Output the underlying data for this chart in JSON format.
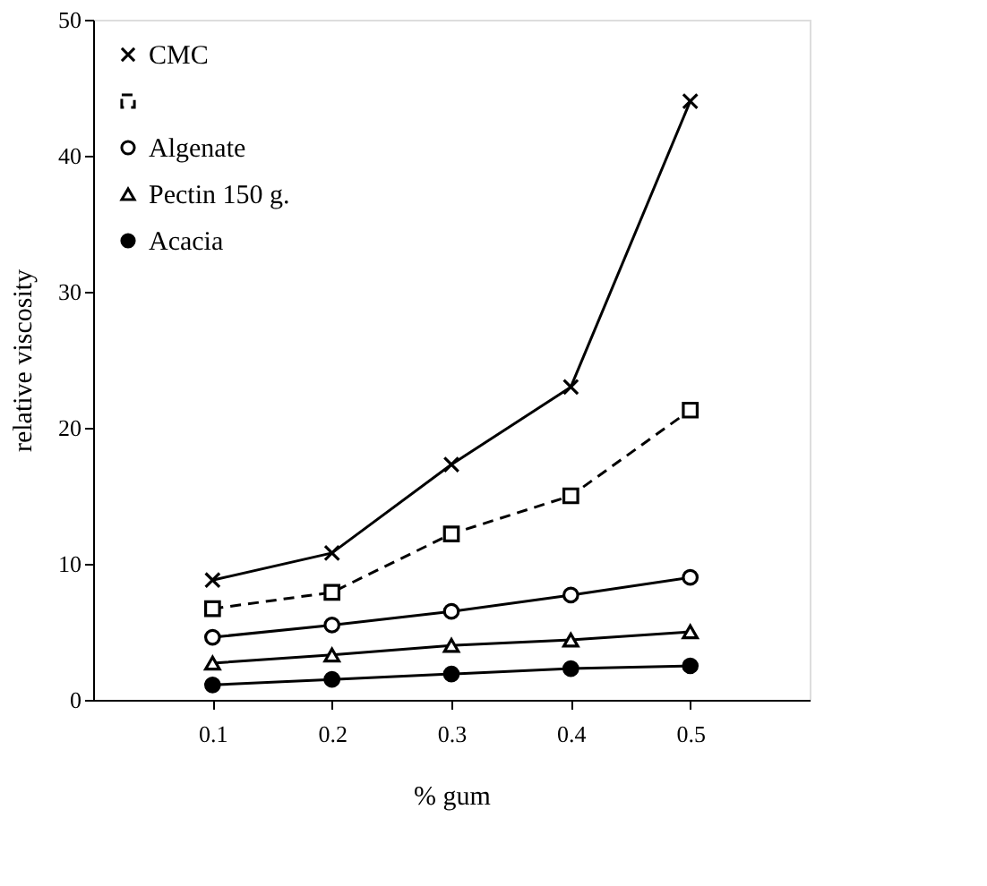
{
  "chart_data": {
    "type": "line",
    "xlabel": "% gum",
    "ylabel": "relative viscosity",
    "x": [
      0.1,
      0.2,
      0.3,
      0.4,
      0.5
    ],
    "xlim": [
      0,
      0.6
    ],
    "xticks": [
      {
        "value": 0.1,
        "label": "0.1"
      },
      {
        "value": 0.2,
        "label": "0.2"
      },
      {
        "value": 0.3,
        "label": "0.3"
      },
      {
        "value": 0.4,
        "label": "0.4"
      },
      {
        "value": 0.5,
        "label": "0.5"
      }
    ],
    "ylim": [
      0,
      50
    ],
    "yticks": [
      0,
      10,
      20,
      30,
      40,
      50
    ],
    "grid": false,
    "legend": "top left",
    "series": [
      {
        "name": "CMC",
        "color": "#000000",
        "marker": "cross",
        "line_style": "solid",
        "values": [
          8.8,
          10.8,
          17.3,
          23.0,
          44.0
        ]
      },
      {
        "color": "#000000",
        "marker": "square",
        "line_style": "dashed",
        "values": [
          6.7,
          7.9,
          12.2,
          15.0,
          21.3
        ]
      },
      {
        "name": "Algenate",
        "color": "#000000",
        "marker": "circle",
        "line_style": "solid",
        "values": [
          4.6,
          5.5,
          6.5,
          7.7,
          9.0
        ]
      },
      {
        "name": "Pectin 150 g.",
        "color": "#000000",
        "marker": "triangle",
        "line_style": "solid",
        "values": [
          2.7,
          3.3,
          4.0,
          4.4,
          5.0
        ]
      },
      {
        "name": "Acacia",
        "color": "#000000",
        "marker": "filled_circle",
        "line_style": "solid",
        "values": [
          1.1,
          1.5,
          1.9,
          2.3,
          2.5
        ]
      }
    ]
  }
}
